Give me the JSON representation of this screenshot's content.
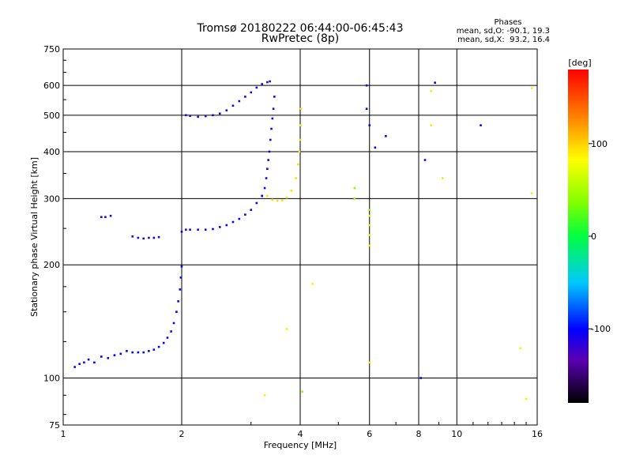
{
  "chart_data": {
    "type": "scatter",
    "title": "Tromsø 20180222 06:44:00-06:45:43",
    "subtitle": "RwPretec (8p)",
    "stats": {
      "heading": "Phases",
      "line1": "mean, sd,O: -90.1, 19.3",
      "line2": "mean, sd,X:  93.2, 16.4"
    },
    "xlabel": "Frequency [MHz]",
    "ylabel": "Stationary phase Virtual Height [km]",
    "x_scale": "log",
    "y_scale": "log",
    "xlim": [
      1,
      16
    ],
    "ylim": [
      75,
      750
    ],
    "x_ticks": [
      1,
      2,
      4,
      6,
      8,
      10,
      16
    ],
    "x_tick_labels": [
      "1",
      "2",
      "4",
      "6",
      "8",
      "10",
      "16"
    ],
    "y_ticks": [
      75,
      100,
      200,
      300,
      400,
      500,
      600,
      750
    ],
    "y_tick_labels": [
      "75",
      "100",
      "200",
      "300",
      "400",
      "500",
      "600",
      "750"
    ],
    "grid": true,
    "colorbar": {
      "label": "[deg]",
      "min": -180,
      "max": 180,
      "ticks": [
        100,
        0,
        -100
      ],
      "tick_labels": [
        "100",
        "0",
        "-100"
      ]
    },
    "traces": [
      {
        "phase": -100,
        "points": [
          [
            1.07,
            107
          ],
          [
            1.1,
            109
          ],
          [
            1.13,
            110
          ],
          [
            1.16,
            112
          ],
          [
            1.2,
            110
          ],
          [
            1.25,
            114
          ],
          [
            1.3,
            113
          ],
          [
            1.35,
            115
          ],
          [
            1.4,
            116
          ],
          [
            1.45,
            118
          ],
          [
            1.5,
            117
          ],
          [
            1.55,
            117
          ],
          [
            1.6,
            117
          ],
          [
            1.65,
            118
          ],
          [
            1.7,
            119
          ],
          [
            1.75,
            121
          ],
          [
            1.8,
            124
          ],
          [
            1.84,
            128
          ],
          [
            1.88,
            133
          ],
          [
            1.91,
            140
          ],
          [
            1.94,
            150
          ],
          [
            1.96,
            160
          ],
          [
            1.98,
            172
          ],
          [
            1.99,
            185
          ],
          [
            2.0,
            198
          ]
        ]
      },
      {
        "phase": -115,
        "points": [
          [
            1.25,
            268
          ],
          [
            1.28,
            268
          ],
          [
            1.32,
            270
          ],
          [
            1.5,
            238
          ],
          [
            1.55,
            236
          ],
          [
            1.6,
            235
          ],
          [
            1.65,
            236
          ],
          [
            1.7,
            236
          ],
          [
            1.75,
            237
          ]
        ]
      },
      {
        "phase": -105,
        "points": [
          [
            2.0,
            245
          ],
          [
            2.05,
            248
          ],
          [
            2.1,
            248
          ],
          [
            2.2,
            248
          ],
          [
            2.3,
            248
          ],
          [
            2.4,
            249
          ],
          [
            2.5,
            252
          ],
          [
            2.6,
            255
          ],
          [
            2.7,
            260
          ],
          [
            2.8,
            265
          ],
          [
            2.9,
            272
          ],
          [
            3.0,
            280
          ],
          [
            3.1,
            292
          ],
          [
            3.2,
            305
          ]
        ]
      },
      {
        "phase": -110,
        "points": [
          [
            3.2,
            305
          ],
          [
            3.25,
            320
          ],
          [
            3.28,
            340
          ],
          [
            3.3,
            360
          ],
          [
            3.32,
            380
          ],
          [
            3.34,
            400
          ],
          [
            3.36,
            430
          ],
          [
            3.38,
            460
          ],
          [
            3.4,
            490
          ],
          [
            3.42,
            520
          ],
          [
            3.44,
            560
          ]
        ]
      },
      {
        "phase": -112,
        "points": [
          [
            2.05,
            500
          ],
          [
            2.1,
            498
          ],
          [
            2.2,
            495
          ],
          [
            2.3,
            497
          ],
          [
            2.4,
            500
          ],
          [
            2.5,
            505
          ],
          [
            2.6,
            515
          ],
          [
            2.7,
            530
          ],
          [
            2.8,
            545
          ],
          [
            2.9,
            560
          ],
          [
            3.0,
            575
          ],
          [
            3.1,
            592
          ],
          [
            3.2,
            605
          ],
          [
            3.3,
            612
          ],
          [
            3.35,
            615
          ]
        ]
      },
      {
        "phase": 95,
        "points": [
          [
            3.3,
            305
          ],
          [
            3.4,
            298
          ],
          [
            3.5,
            296
          ],
          [
            3.6,
            297
          ],
          [
            3.7,
            302
          ],
          [
            3.8,
            315
          ],
          [
            3.9,
            340
          ],
          [
            3.95,
            370
          ],
          [
            3.98,
            400
          ],
          [
            4.0,
            430
          ],
          [
            4.01,
            470
          ],
          [
            4.02,
            520
          ]
        ]
      },
      {
        "phase": -100,
        "points": [
          [
            5.9,
            600
          ],
          [
            5.9,
            520
          ],
          [
            6.0,
            470
          ],
          [
            6.2,
            410
          ],
          [
            6.6,
            440
          ],
          [
            8.1,
            100
          ],
          [
            8.3,
            380
          ],
          [
            8.8,
            610
          ],
          [
            11.5,
            470
          ]
        ]
      },
      {
        "phase": 90,
        "points": [
          [
            6.0,
            270
          ],
          [
            6.0,
            255
          ],
          [
            6.0,
            240
          ],
          [
            6.0,
            225
          ],
          [
            6.0,
            110
          ],
          [
            8.6,
            580
          ],
          [
            8.6,
            470
          ],
          [
            9.2,
            340
          ],
          [
            14.5,
            120
          ],
          [
            15.0,
            88
          ],
          [
            15.5,
            590
          ],
          [
            15.5,
            310
          ],
          [
            3.7,
            135
          ],
          [
            4.3,
            178
          ],
          [
            3.25,
            90
          ]
        ]
      },
      {
        "phase": 40,
        "points": [
          [
            4.05,
            92
          ],
          [
            5.5,
            320
          ],
          [
            5.5,
            300
          ],
          [
            6.0,
            280
          ]
        ]
      }
    ]
  }
}
